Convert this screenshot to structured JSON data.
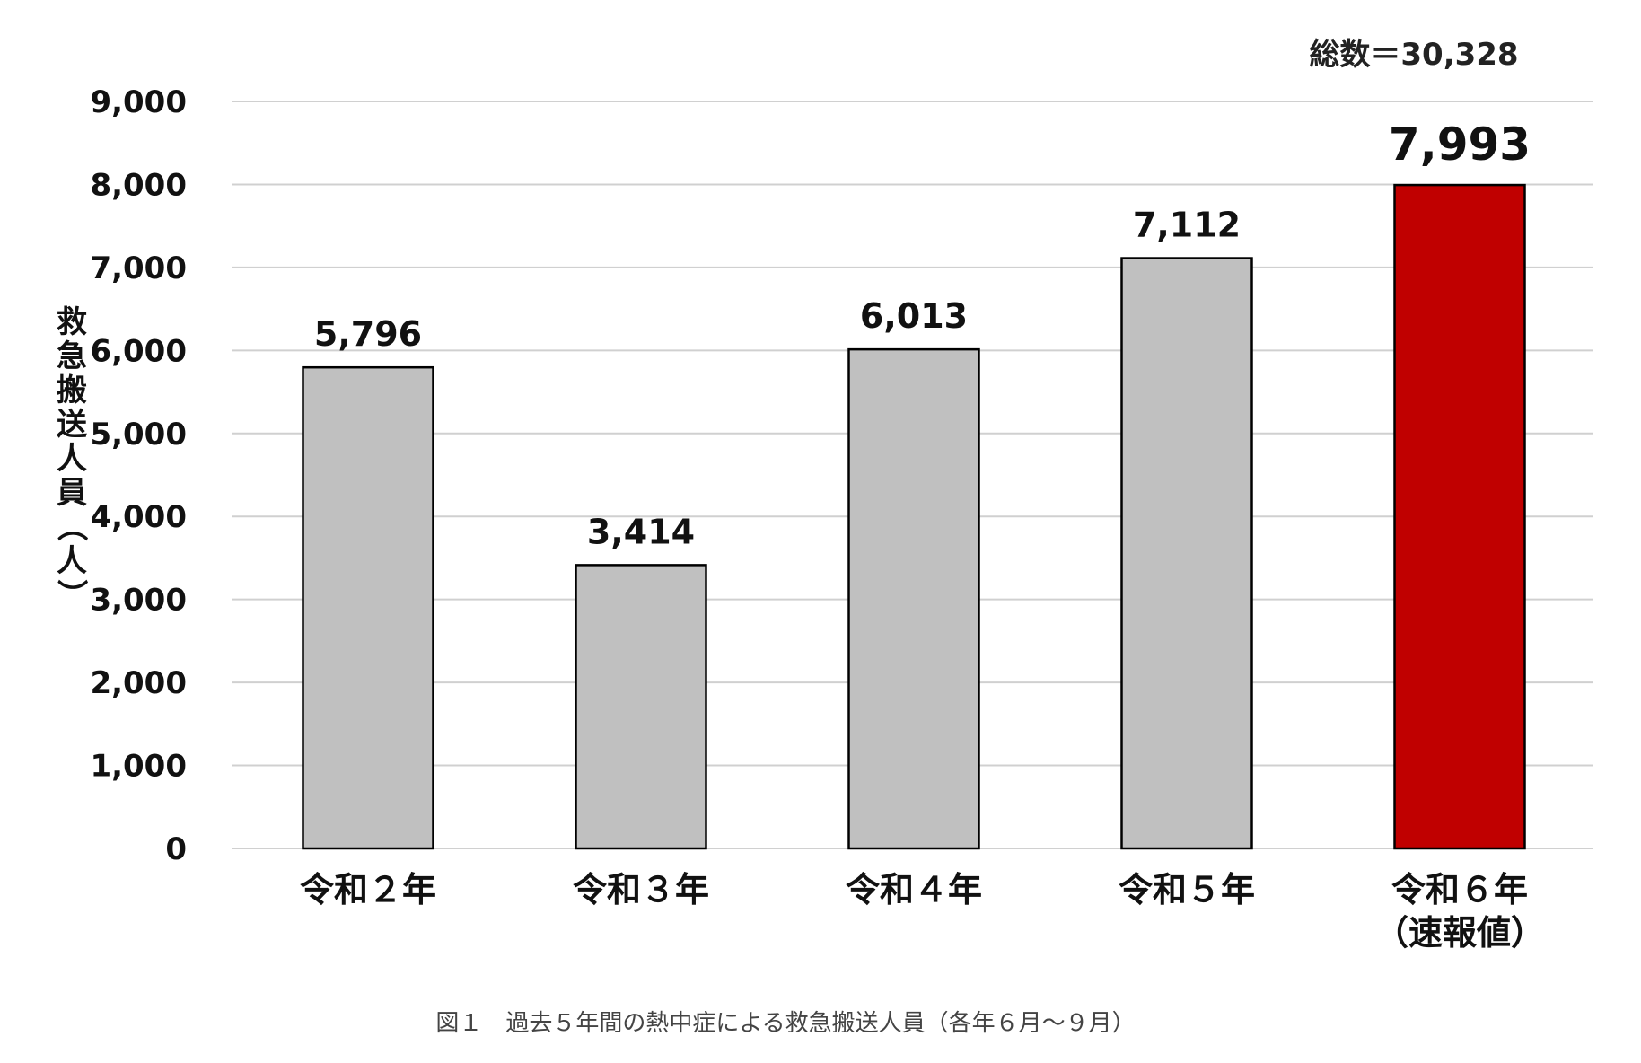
{
  "chart_data": {
    "type": "bar",
    "categories": [
      "令和２年",
      "令和３年",
      "令和４年",
      "令和５年",
      "令和６年"
    ],
    "category_sublabels": [
      "",
      "",
      "",
      "",
      "（速報値）"
    ],
    "values": [
      5796,
      3414,
      6013,
      7112,
      7993
    ],
    "value_labels": [
      "5,796",
      "3,414",
      "6,013",
      "7,112",
      "7,993"
    ],
    "highlight_index": 4,
    "ylabel": "救急搬送人員（人）",
    "ylim": [
      0,
      9000
    ],
    "yticks": [
      0,
      1000,
      2000,
      3000,
      4000,
      5000,
      6000,
      7000,
      8000,
      9000
    ],
    "ytick_labels": [
      "0",
      "1,000",
      "2,000",
      "3,000",
      "4,000",
      "5,000",
      "6,000",
      "7,000",
      "8,000",
      "9,000"
    ],
    "grid": true,
    "total_label": "総数＝30,328",
    "caption": "図１　過去５年間の熱中症による救急搬送人員（各年６月～９月）",
    "colors": {
      "bar": "#c0c0c0",
      "highlight": "#c00000",
      "grid": "#d0d0d0",
      "bar_edge": "#000000"
    }
  }
}
